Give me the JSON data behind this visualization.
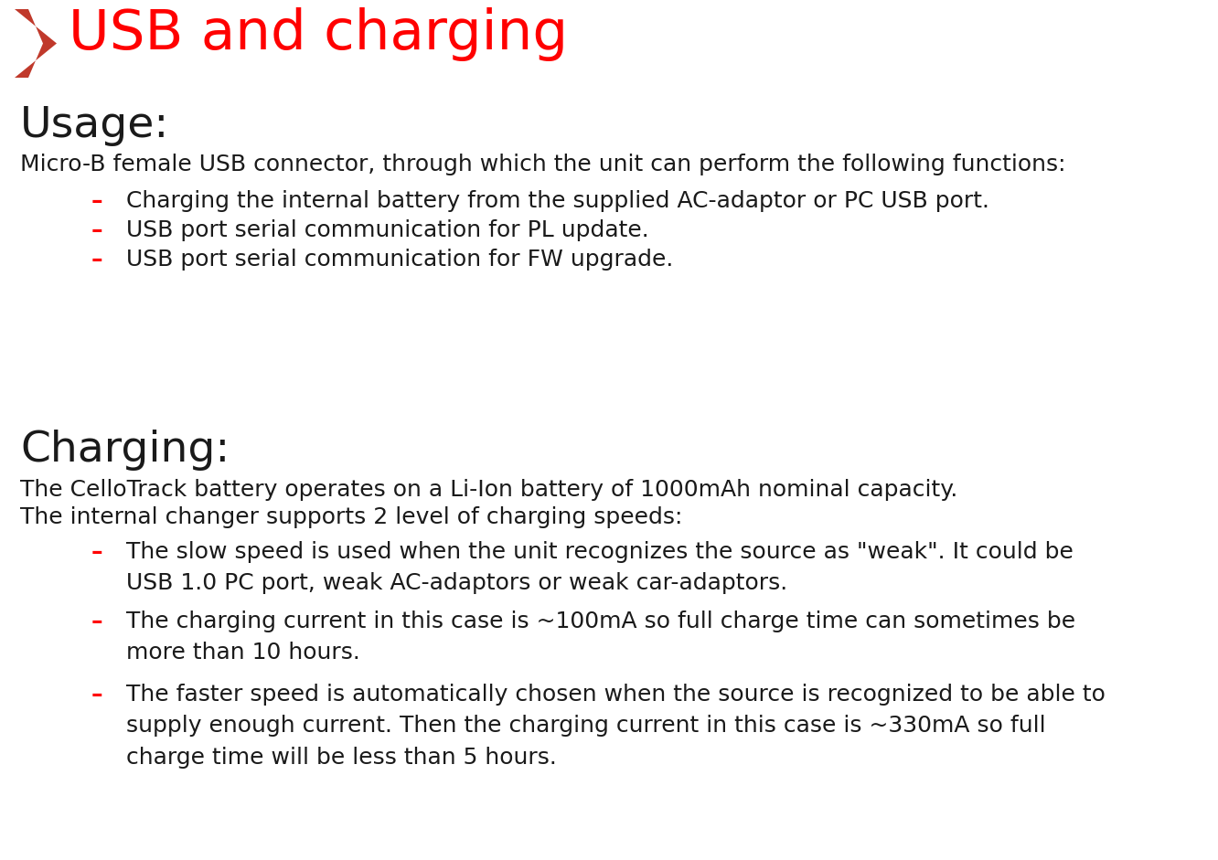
{
  "title": "USB and charging",
  "title_color": "#FF0000",
  "title_fontsize": 44,
  "background_color": "#FFFFFF",
  "arrow_color": "#C0392B",
  "section1_heading": "Usage:",
  "section1_heading_fontsize": 34,
  "section1_body": "Micro-B female USB connector, through which the unit can perform the following functions:",
  "body_fontsize": 18,
  "section1_bullets": [
    "Charging the internal battery from the supplied AC-adaptor or PC USB port.",
    "USB port serial communication for PL update.",
    "USB port serial communication for FW upgrade."
  ],
  "section2_heading": "Charging:",
  "section2_heading_fontsize": 34,
  "section2_body1": "The CelloTrack battery operates on a Li-Ion battery of 1000mAh nominal capacity.",
  "section2_body2": "The internal changer supports 2 level of charging speeds:",
  "section2_bullets": [
    "The slow speed is used when the unit recognizes the source as \"weak\". It could be\nUSB 1.0 PC port, weak AC-adaptors or weak car-adaptors.",
    "The charging current in this case is ~100mA so full charge time can sometimes be\nmore than 10 hours.",
    "The faster speed is automatically chosen when the source is recognized to be able to\nsupply enough current. Then the charging current in this case is ~330mA so full\ncharge time will be less than 5 hours."
  ],
  "bullet_color": "#FF0000",
  "bullet_dash": "–",
  "text_color": "#1A1A1A",
  "font_family": "DejaVu Sans",
  "fig_width": 13.32,
  "fig_height": 9.41,
  "dpi": 100
}
